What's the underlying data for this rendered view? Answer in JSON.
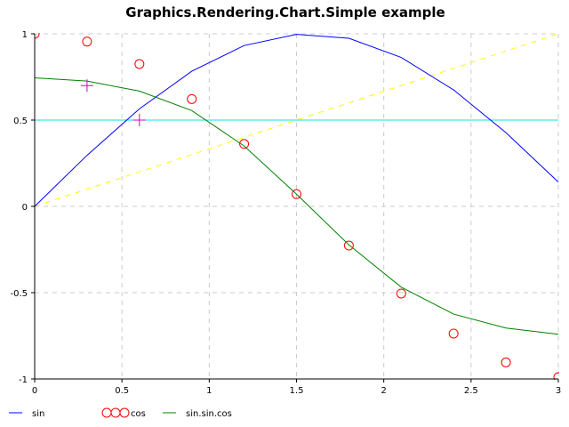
{
  "chart_data": {
    "type": "line",
    "title": "Graphics.Rendering.Chart.Simple example",
    "xlabel": "",
    "ylabel": "",
    "xlim": [
      0,
      3
    ],
    "ylim": [
      -1,
      1
    ],
    "x_ticks": [
      "0",
      "0.5",
      "1",
      "1.5",
      "2",
      "2.5",
      "3"
    ],
    "y_ticks": [
      "1",
      "0.5",
      "0",
      "-0.5",
      "-1"
    ],
    "grid": true,
    "legend_position": "bottom-left",
    "x": [
      0,
      0.3,
      0.6,
      0.9,
      1.2,
      1.5,
      1.8,
      2.1,
      2.4,
      2.7,
      3.0
    ],
    "series": [
      {
        "name": "sin",
        "kind": "line",
        "color": "#0000ff",
        "values": [
          0,
          0.296,
          0.565,
          0.783,
          0.932,
          0.997,
          0.974,
          0.863,
          0.675,
          0.427,
          0.141
        ]
      },
      {
        "name": "cos",
        "kind": "circles",
        "color": "#ff0000",
        "values": [
          1.0,
          0.955,
          0.825,
          0.622,
          0.362,
          0.071,
          -0.227,
          -0.505,
          -0.737,
          -0.904,
          -0.99
        ]
      },
      {
        "name": "sin.sin.cos",
        "kind": "line",
        "color": "#008000",
        "values": [
          0.745,
          0.726,
          0.668,
          0.555,
          0.35,
          0.071,
          -0.223,
          -0.468,
          -0.624,
          -0.705,
          -0.741
        ]
      },
      {
        "name": "",
        "kind": "line",
        "color": "#00e5e5",
        "x": [
          0,
          3
        ],
        "values": [
          0.5,
          0.5
        ]
      },
      {
        "name": "",
        "kind": "dashed-line",
        "color": "#ffff00",
        "x": [
          0,
          3
        ],
        "values": [
          0,
          1
        ]
      },
      {
        "name": "",
        "kind": "plus",
        "color": "#cc00cc",
        "x": [
          0.3,
          0.6
        ],
        "values": [
          0.7,
          0.5
        ]
      }
    ]
  }
}
